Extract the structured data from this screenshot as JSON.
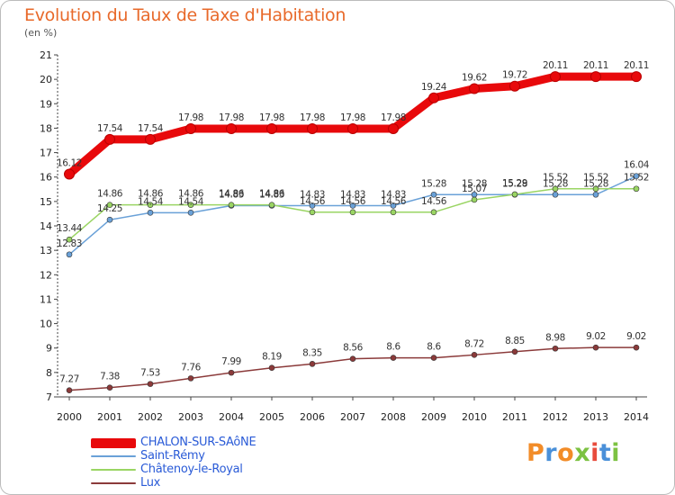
{
  "header": {
    "title": "Evolution du Taux de Taxe d'Habitation",
    "unit": "(en %)"
  },
  "brand": {
    "name": "Proxiti",
    "letter_colors": [
      "#f28c28",
      "#4a90d9",
      "#f28c28",
      "#7cc242",
      "#e84c3d",
      "#4a90d9",
      "#7cc242"
    ]
  },
  "chart_data": {
    "type": "line",
    "title": "Evolution du Taux de Taxe d'Habitation",
    "ylabel": "(en %)",
    "xlabel": "",
    "x": [
      "2000",
      "2001",
      "2002",
      "2003",
      "2004",
      "2005",
      "2006",
      "2007",
      "2008",
      "2009",
      "2010",
      "2011",
      "2012",
      "2013",
      "2014"
    ],
    "ylim": [
      7,
      21
    ],
    "yticks": [
      "7",
      "8",
      "9",
      "10",
      "11",
      "12",
      "13",
      "14",
      "15",
      "16",
      "17",
      "18",
      "19",
      "20",
      "21"
    ],
    "grid": false,
    "legend_position": "bottom-left",
    "series": [
      {
        "name": "CHALON-SUR-SAôNE",
        "color": "#e8090b",
        "values": [
          16.12,
          17.54,
          17.54,
          17.98,
          17.98,
          17.98,
          17.98,
          17.98,
          17.98,
          19.24,
          19.62,
          19.72,
          20.11,
          20.11,
          20.11
        ],
        "labels": [
          "16.12",
          "17.54",
          "17.54",
          "17.98",
          "17.98",
          "17.98",
          "17.98",
          "17.98",
          "17.98",
          "19.24",
          "19.62",
          "19.72",
          "20.11",
          "20.11",
          "20.11"
        ]
      },
      {
        "name": "Saint-Rémy",
        "color": "#6aa1d8",
        "values": [
          12.83,
          14.25,
          14.54,
          14.54,
          14.83,
          14.83,
          14.83,
          14.83,
          14.83,
          15.28,
          15.28,
          15.28,
          15.28,
          15.28,
          16.04
        ],
        "labels": [
          "12.83",
          "14.25",
          "14.54",
          "14.54",
          "14.83",
          "14.83",
          "14.83",
          "14.83",
          "14.83",
          "15.28",
          "15.28",
          "15.28",
          "15.28",
          "15.28",
          "16.04"
        ]
      },
      {
        "name": "Châtenoy-le-Royal",
        "color": "#9ad563",
        "values": [
          13.44,
          14.86,
          14.86,
          14.86,
          14.86,
          14.86,
          14.56,
          14.56,
          14.56,
          14.56,
          15.07,
          15.29,
          15.52,
          15.52,
          15.52
        ],
        "labels": [
          "13.44",
          "14.86",
          "14.86",
          "14.86",
          "14.86",
          "14.86",
          "14.56",
          "14.56",
          "14.56",
          "14.56",
          "15.07",
          "15.29",
          "15.52",
          "15.52",
          "15.52"
        ]
      },
      {
        "name": "Lux",
        "color": "#8b3a3a",
        "values": [
          7.27,
          7.38,
          7.53,
          7.76,
          7.99,
          8.19,
          8.35,
          8.56,
          8.6,
          8.6,
          8.72,
          8.85,
          8.98,
          9.02,
          9.02
        ],
        "labels": [
          "7.27",
          "7.38",
          "7.53",
          "7.76",
          "7.99",
          "8.19",
          "8.35",
          "8.56",
          "8.6",
          "8.6",
          "8.72",
          "8.85",
          "8.98",
          "9.02",
          "9.02"
        ]
      }
    ]
  }
}
